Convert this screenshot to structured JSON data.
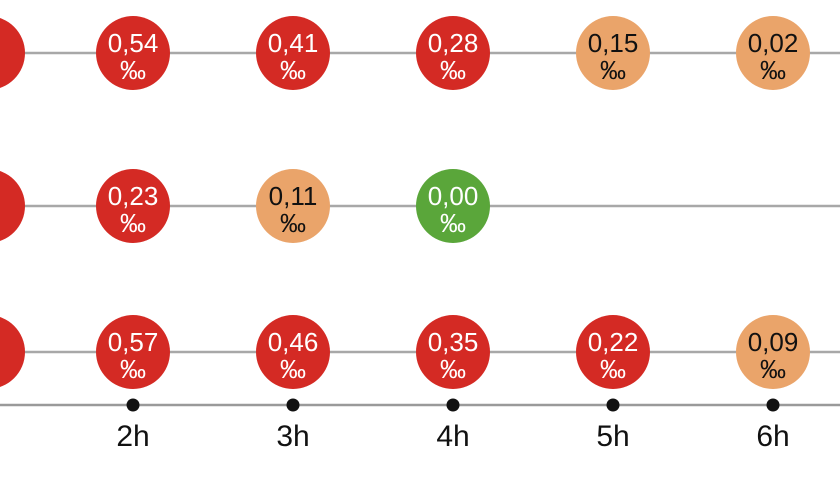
{
  "colors": {
    "high": "#d42a24",
    "medium": "#eaa46a",
    "zero": "#5aa63a",
    "text_on_dark": "#ffffff",
    "text_on_light": "#111111"
  },
  "chart_data": {
    "type": "bubble-timeline",
    "x_unit_label": "‰",
    "x_ticks": [
      "2h",
      "3h",
      "4h",
      "5h",
      "6h"
    ],
    "rows": [
      {
        "values": [
          {
            "x": "2h",
            "value": "0,54",
            "level": "high"
          },
          {
            "x": "3h",
            "value": "0,41",
            "level": "high"
          },
          {
            "x": "4h",
            "value": "0,28",
            "level": "high"
          },
          {
            "x": "5h",
            "value": "0,15",
            "level": "medium"
          },
          {
            "x": "6h",
            "value": "0,02",
            "level": "medium"
          }
        ]
      },
      {
        "values": [
          {
            "x": "2h",
            "value": "0,23",
            "level": "high"
          },
          {
            "x": "3h",
            "value": "0,11",
            "level": "medium"
          },
          {
            "x": "4h",
            "value": "0,00",
            "level": "zero"
          }
        ]
      },
      {
        "values": [
          {
            "x": "2h",
            "value": "0,57",
            "level": "high"
          },
          {
            "x": "3h",
            "value": "0,46",
            "level": "high"
          },
          {
            "x": "4h",
            "value": "0,35",
            "level": "high"
          },
          {
            "x": "5h",
            "value": "0,22",
            "level": "high"
          },
          {
            "x": "6h",
            "value": "0,09",
            "level": "medium"
          }
        ]
      }
    ]
  }
}
